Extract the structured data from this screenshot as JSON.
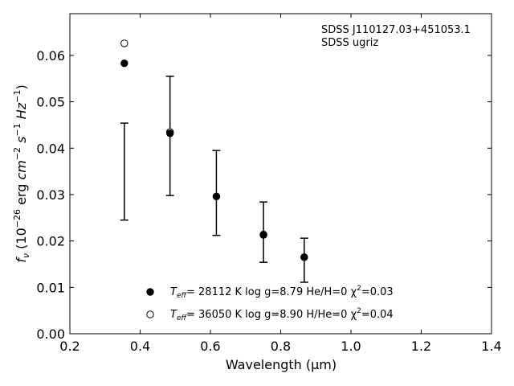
{
  "chart_data": {
    "type": "scatter",
    "xlabel": "Wavelength (μm)",
    "ylabel": "f_ν (10^-26 erg cm^-2 s^-1 Hz^-1)",
    "xlim": [
      0.2,
      1.4
    ],
    "ylim": [
      0.0,
      0.069
    ],
    "x_ticks": [
      0.2,
      0.4,
      0.6,
      0.8,
      1.0,
      1.2,
      1.4
    ],
    "x_tick_labels": [
      "0.2",
      "0.4",
      "0.6",
      "0.8",
      "1.0",
      "1.2",
      "1.4"
    ],
    "y_ticks": [
      0.0,
      0.01,
      0.02,
      0.03,
      0.04,
      0.05,
      0.06
    ],
    "y_tick_labels": [
      "0.00",
      "0.01",
      "0.02",
      "0.03",
      "0.04",
      "0.05",
      "0.06"
    ],
    "grid": false,
    "annotation_lines": [
      "SDSS J110127.03+451053.1",
      "SDSS ugriz"
    ],
    "observed": {
      "x": [
        0.355,
        0.485,
        0.617,
        0.751,
        0.867
      ],
      "y": [
        0.035,
        0.0428,
        0.0304,
        0.0219,
        0.0159
      ],
      "yerr_low": [
        0.0245,
        0.0298,
        0.0212,
        0.0154,
        0.0111
      ],
      "yerr_high": [
        0.0454,
        0.0555,
        0.0395,
        0.0284,
        0.0206
      ]
    },
    "series": [
      {
        "label_teff": "T",
        "label_teff_sub": "eff",
        "label_rest": "= 28112 K  log g=8.79  He/H=0  χ",
        "label_chi_sup": "2",
        "label_chi_val": "=0.03",
        "marker": "filled-circle",
        "x": [
          0.355,
          0.485,
          0.617,
          0.751,
          0.867
        ],
        "y": [
          0.0583,
          0.0432,
          0.0296,
          0.0213,
          0.0165
        ]
      },
      {
        "label_teff": "T",
        "label_teff_sub": "eff",
        "label_rest": "= 36050 K  log g=8.90  H/He=0  χ",
        "label_chi_sup": "2",
        "label_chi_val": "=0.04",
        "marker": "open-circle",
        "x": [
          0.355,
          0.485,
          0.617,
          0.751,
          0.867
        ],
        "y": [
          0.0626,
          0.0435,
          0.0296,
          0.0214,
          0.0165
        ]
      }
    ],
    "legend_position": "bottom-center"
  }
}
